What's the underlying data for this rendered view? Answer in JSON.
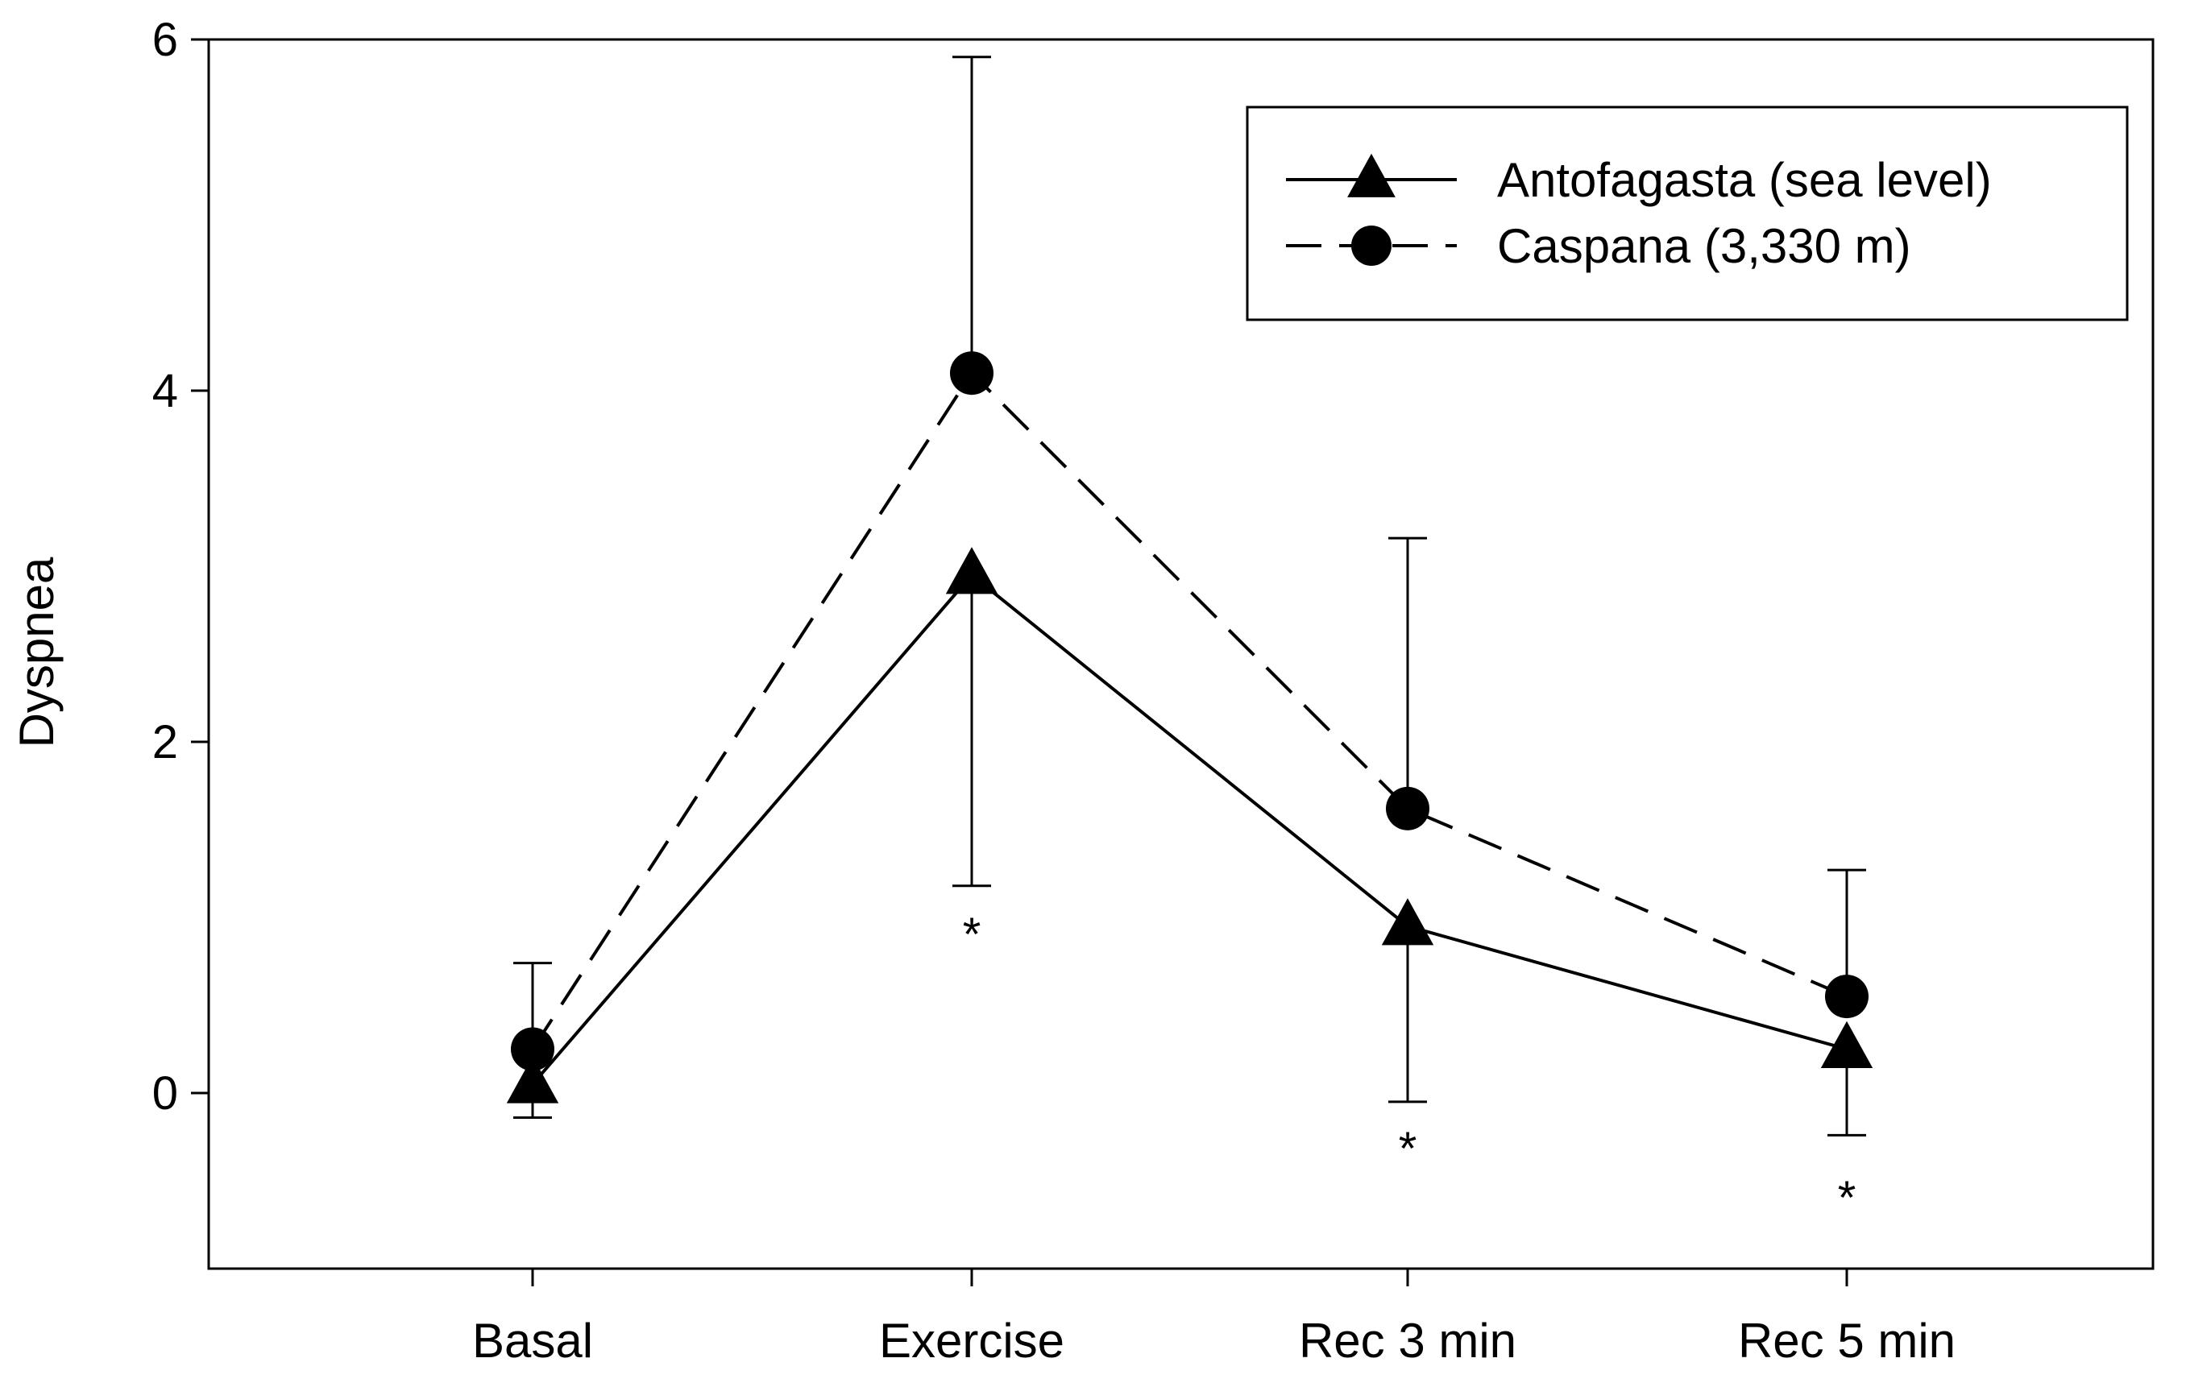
{
  "chart_data": {
    "type": "line",
    "title": "",
    "xlabel": "",
    "ylabel": "Dyspnea",
    "categories": [
      "Basal",
      "Exercise",
      "Rec 3 min",
      "Rec 5 min"
    ],
    "ylim": [
      -1,
      6
    ],
    "yticks": [
      0,
      2,
      4,
      6
    ],
    "grid": false,
    "legend_position": "top-right",
    "series": [
      {
        "name": "Antofagasta (sea level)",
        "marker": "triangle",
        "line_style": "solid",
        "values": [
          0.05,
          2.95,
          0.95,
          0.25
        ],
        "error_upper": [
          null,
          null,
          null,
          null
        ],
        "error_lower": [
          -0.14,
          1.18,
          -0.05,
          -0.24
        ]
      },
      {
        "name": "Caspana (3,330 m)",
        "marker": "circle",
        "line_style": "dashed",
        "values": [
          0.25,
          4.1,
          1.62,
          0.55
        ],
        "error_upper": [
          0.74,
          5.9,
          3.16,
          1.27
        ],
        "error_lower": [
          null,
          null,
          null,
          null
        ]
      }
    ],
    "annotations": [
      {
        "category": "Exercise",
        "text": "*",
        "y": 0.95
      },
      {
        "category": "Rec 3 min",
        "text": "*",
        "y": -0.27
      },
      {
        "category": "Rec 5 min",
        "text": "*",
        "y": -0.55
      }
    ],
    "color": "#000000"
  }
}
